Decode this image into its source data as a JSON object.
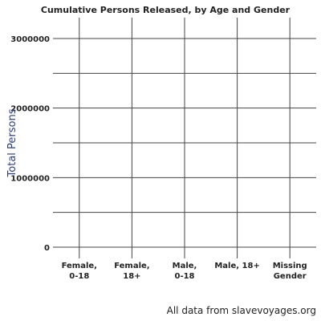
{
  "chart_data": {
    "type": "bar",
    "title": "Cumulative Persons Released, by Age and Gender",
    "ylabel": "Total Persons",
    "xlabel": "",
    "categories": [
      [
        "Female,",
        "0-18"
      ],
      [
        "Female,",
        "18+"
      ],
      [
        "Male,",
        "0-18"
      ],
      [
        "Male, 18+"
      ],
      [
        "Missing",
        "Gender"
      ]
    ],
    "values": [
      0,
      0,
      0,
      0,
      0
    ],
    "ylim": [
      0,
      3300000
    ],
    "yticks": [
      0,
      1000000,
      2000000,
      3000000
    ],
    "ytick_labels": [
      "0",
      "1000000",
      "2000000",
      "3000000"
    ],
    "grid": true,
    "bar_color": "#2f3f7a"
  },
  "caption": "All data from slavevoyages.org"
}
